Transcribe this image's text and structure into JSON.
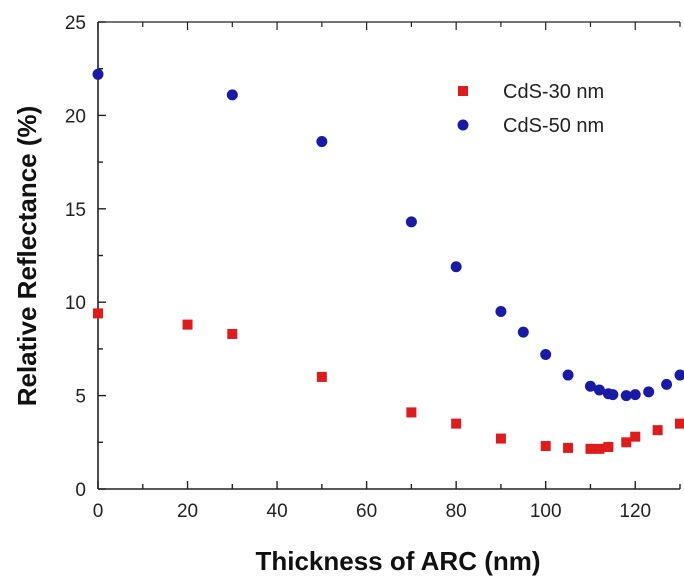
{
  "chart_data": {
    "type": "scatter",
    "title": "",
    "xlabel": "Thickness of ARC (nm)",
    "ylabel": "Relative Reflectance (%)",
    "xlim": [
      0,
      130
    ],
    "ylim": [
      0,
      25
    ],
    "x_ticks": [
      "0",
      "20",
      "40",
      "60",
      "80",
      "100",
      "120"
    ],
    "y_ticks": [
      "0",
      "5",
      "10",
      "15",
      "20",
      "25"
    ],
    "grid": false,
    "legend_position": "top-right",
    "series": [
      {
        "name": "CdS-30 nm",
        "color": "#e01b1b",
        "marker": "square",
        "points": [
          [
            0,
            9.4
          ],
          [
            20,
            8.8
          ],
          [
            30,
            8.3
          ],
          [
            50,
            6.0
          ],
          [
            70,
            4.1
          ],
          [
            80,
            3.5
          ],
          [
            90,
            2.7
          ],
          [
            100,
            2.3
          ],
          [
            105,
            2.2
          ],
          [
            110,
            2.15
          ],
          [
            112,
            2.15
          ],
          [
            114,
            2.25
          ],
          [
            118,
            2.5
          ],
          [
            120,
            2.8
          ],
          [
            125,
            3.15
          ],
          [
            130,
            3.5
          ]
        ]
      },
      {
        "name": "CdS-50 nm",
        "color": "#1a1aa8",
        "marker": "circle",
        "points": [
          [
            0,
            22.2
          ],
          [
            30,
            21.1
          ],
          [
            50,
            18.6
          ],
          [
            70,
            14.3
          ],
          [
            80,
            11.9
          ],
          [
            90,
            9.5
          ],
          [
            95,
            8.4
          ],
          [
            100,
            7.2
          ],
          [
            105,
            6.1
          ],
          [
            110,
            5.5
          ],
          [
            112,
            5.3
          ],
          [
            114,
            5.1
          ],
          [
            115,
            5.05
          ],
          [
            118,
            5.0
          ],
          [
            120,
            5.05
          ],
          [
            123,
            5.2
          ],
          [
            127,
            5.6
          ],
          [
            130,
            6.1
          ]
        ]
      }
    ]
  }
}
